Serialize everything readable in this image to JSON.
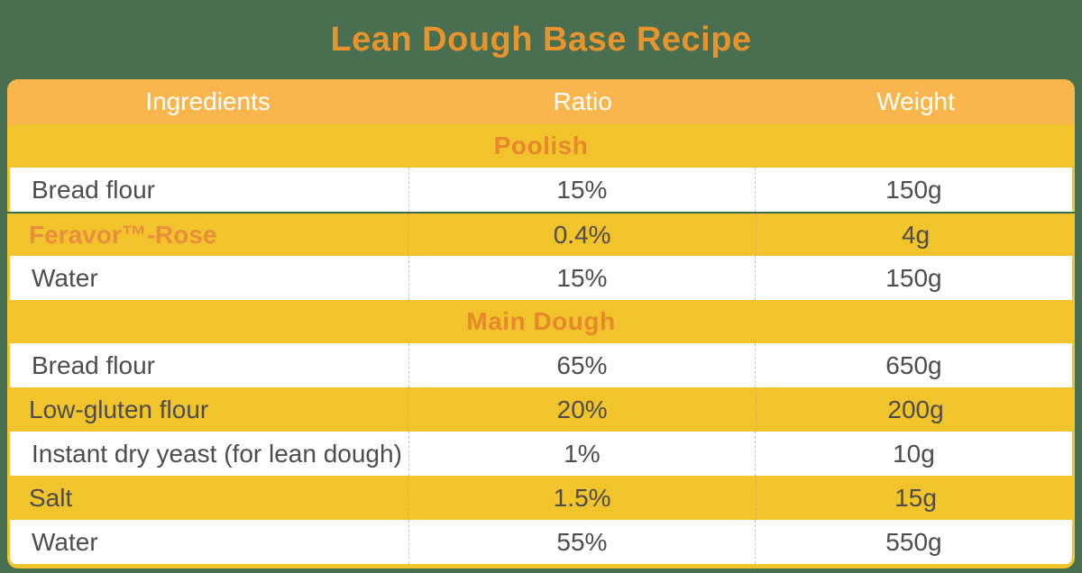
{
  "page": {
    "background_color": "#487050"
  },
  "chart_data": {
    "type": "table",
    "title": "Lean Dough Base Recipe",
    "columns": [
      "Ingredients",
      "Ratio",
      "Weight"
    ],
    "sections": [
      {
        "label": "Poolish",
        "rows": [
          {
            "ingredient": "Bread flour",
            "ratio": "15%",
            "weight": "150g",
            "highlight": false
          },
          {
            "ingredient": "Feravor™-Rose",
            "ratio": "0.4%",
            "weight": "4g",
            "highlight": true
          },
          {
            "ingredient": "Water",
            "ratio": "15%",
            "weight": "150g",
            "highlight": false
          }
        ]
      },
      {
        "label": "Main Dough",
        "rows": [
          {
            "ingredient": "Bread flour",
            "ratio": "65%",
            "weight": "650g",
            "highlight": false
          },
          {
            "ingredient": "Low-gluten flour",
            "ratio": "20%",
            "weight": "200g",
            "highlight": false
          },
          {
            "ingredient": "Instant dry yeast (for lean dough)",
            "ratio": "1%",
            "weight": "10g",
            "highlight": false
          },
          {
            "ingredient": "Salt",
            "ratio": "1.5%",
            "weight": "15g",
            "highlight": false
          },
          {
            "ingredient": "Water",
            "ratio": "55%",
            "weight": "550g",
            "highlight": false
          }
        ]
      }
    ],
    "layout": {
      "striping": "rows alternate white and gold within each section, starting white",
      "column_alignment": [
        "left",
        "center",
        "center"
      ]
    }
  },
  "colors": {
    "title_text": "#E9932C",
    "header_bg": "#F8B64D",
    "header_text": "#FFFFFF",
    "gold_row_bg": "#F2C42B",
    "white_row_bg": "#FFFFFF",
    "section_label_text": "#E8872B",
    "data_text": "#4D4D4D",
    "highlight_ingredient_text": "#E88E3C",
    "highlight_divider": "#3F6B51",
    "column_separator_dashed": "#E9A046"
  }
}
